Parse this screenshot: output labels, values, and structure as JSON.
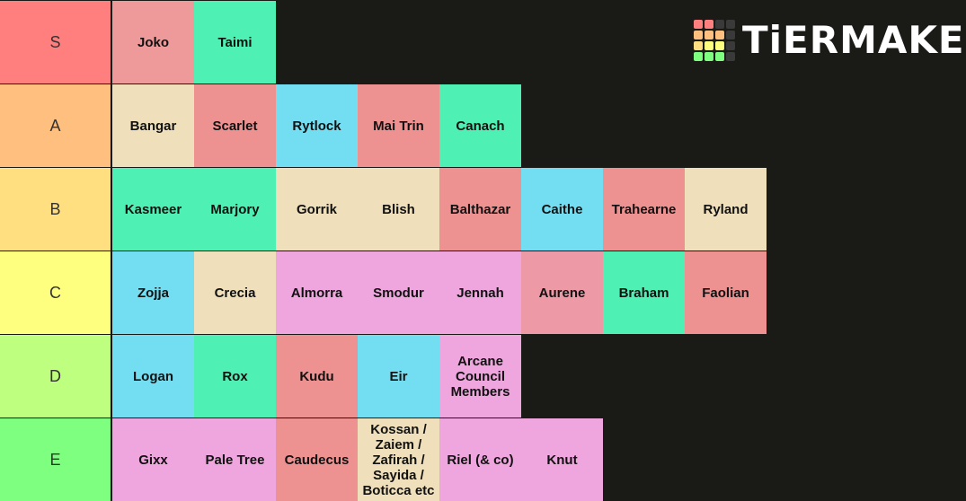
{
  "logo": {
    "text": "TiERMAKER",
    "grid_colors": [
      "#ff7f7f",
      "#ff7f7f",
      "#3a3a3a",
      "#3a3a3a",
      "#ffbf7f",
      "#ffbf7f",
      "#ffbf7f",
      "#3a3a3a",
      "#ffdf7f",
      "#ffff7f",
      "#ffff7f",
      "#3a3a3a",
      "#7fff7f",
      "#7fff7f",
      "#7fff7f",
      "#3a3a3a"
    ]
  },
  "tiers": [
    {
      "label": "S",
      "color": "#ff7f7f",
      "items": [
        {
          "name": "Joko",
          "color": "#ee9a9a"
        },
        {
          "name": "Taimi",
          "color": "#4ff0b4"
        }
      ]
    },
    {
      "label": "A",
      "color": "#ffbf7f",
      "items": [
        {
          "name": "Bangar",
          "color": "#efe0bb"
        },
        {
          "name": "Scarlet",
          "color": "#ee9191"
        },
        {
          "name": "Rytlock",
          "color": "#73def2"
        },
        {
          "name": "Mai Trin",
          "color": "#ee9191"
        },
        {
          "name": "Canach",
          "color": "#4ff0b4"
        }
      ]
    },
    {
      "label": "B",
      "color": "#ffdf7f",
      "items": [
        {
          "name": "Kasmeer",
          "color": "#4ff0b4"
        },
        {
          "name": "Marjory",
          "color": "#4ff0b4"
        },
        {
          "name": "Gorrik",
          "color": "#efe0bb"
        },
        {
          "name": "Blish",
          "color": "#efe0bb"
        },
        {
          "name": "Balthazar",
          "color": "#ee9191"
        },
        {
          "name": "Caithe",
          "color": "#73def2"
        },
        {
          "name": "Trahearne",
          "color": "#ee9191"
        },
        {
          "name": "Ryland",
          "color": "#efe0bb"
        }
      ]
    },
    {
      "label": "C",
      "color": "#ffff7f",
      "items": [
        {
          "name": "Zojja",
          "color": "#73def2"
        },
        {
          "name": "Crecia",
          "color": "#efe0bb"
        },
        {
          "name": "Almorra",
          "color": "#efa6de"
        },
        {
          "name": "Smodur",
          "color": "#efa6de"
        },
        {
          "name": "Jennah",
          "color": "#efa6de"
        },
        {
          "name": "Aurene",
          "color": "#ee9aa6"
        },
        {
          "name": "Braham",
          "color": "#4ff0b4"
        },
        {
          "name": "Faolian",
          "color": "#ee9191"
        }
      ]
    },
    {
      "label": "D",
      "color": "#bfff7f",
      "items": [
        {
          "name": "Logan",
          "color": "#73def2"
        },
        {
          "name": "Rox",
          "color": "#4ff0b4"
        },
        {
          "name": "Kudu",
          "color": "#ee9191"
        },
        {
          "name": "Eir",
          "color": "#73def2"
        },
        {
          "name": "Arcane Council Members",
          "color": "#efa6de"
        }
      ]
    },
    {
      "label": "E",
      "color": "#7fff7f",
      "items": [
        {
          "name": "Gixx",
          "color": "#efa6de"
        },
        {
          "name": "Pale Tree",
          "color": "#efa6de"
        },
        {
          "name": "Caudecus",
          "color": "#ee9191"
        },
        {
          "name": "Kossan / Zaiem / Zafirah / Sayida / Boticca etc",
          "color": "#efe0bb"
        },
        {
          "name": "Riel (& co)",
          "color": "#efa6de"
        },
        {
          "name": "Knut",
          "color": "#efa6de"
        }
      ]
    }
  ]
}
